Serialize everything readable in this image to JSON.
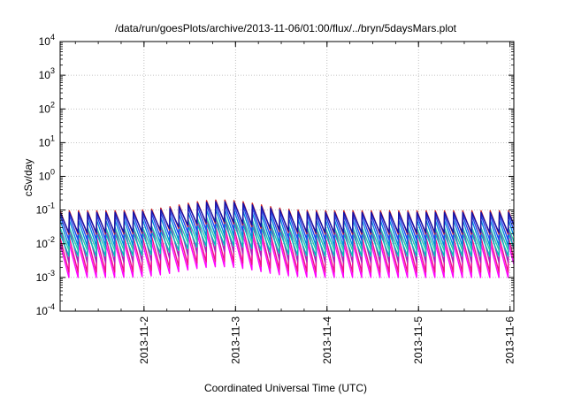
{
  "chart_data": {
    "type": "line",
    "title": "/data/run/goesPlots/archive/2013-11-06/01:00/flux/../bryn/5daysMars.plot",
    "xlabel": "Coordinated Universal Time (UTC)",
    "ylabel": "cSv/day",
    "yscale": "log",
    "ylim": [
      0.0001,
      10000
    ],
    "xlim": [
      "2013-11-01T02:00",
      "2013-11-06T01:00"
    ],
    "x_ticks": [
      "2013-11-2",
      "2013-11-3",
      "2013-11-4",
      "2013-11-5",
      "2013-11-6"
    ],
    "y_ticks": [
      {
        "base": "10",
        "exp": "-4"
      },
      {
        "base": "10",
        "exp": "-3"
      },
      {
        "base": "10",
        "exp": "-2"
      },
      {
        "base": "10",
        "exp": "-1"
      },
      {
        "base": "10",
        "exp": "0"
      },
      {
        "base": "10",
        "exp": "1"
      },
      {
        "base": "10",
        "exp": "2"
      },
      {
        "base": "10",
        "exp": "3"
      },
      {
        "base": "10",
        "exp": "4"
      }
    ],
    "grid": true,
    "legend": "none",
    "sawtooth_period_hours": 2.4,
    "sawtooth_start": "2013-11-01T02:00",
    "series": [
      {
        "color": "#ff00ff",
        "peak": 0.01,
        "trough": 0.0009
      },
      {
        "color": "#ee1188",
        "peak": 0.015,
        "trough": 0.0013
      },
      {
        "color": "#aa22bb",
        "peak": 0.03,
        "trough": 0.0025
      },
      {
        "color": "#00bbbb",
        "peak": 0.02,
        "trough": 0.004
      },
      {
        "color": "#22ccaa",
        "peak": 0.03,
        "trough": 0.006
      },
      {
        "color": "#0088dd",
        "peak": 0.05,
        "trough": 0.008
      },
      {
        "color": "#2244ee",
        "peak": 0.07,
        "trough": 0.012
      },
      {
        "color": "#cc2222",
        "peak": 0.095,
        "trough": 0.018
      },
      {
        "color": "#1111aa",
        "peak": 0.085,
        "trough": 0.02
      }
    ],
    "enhancement": {
      "center": "2013-11-02T20:00",
      "width_hours": 12,
      "factor": 2.1
    }
  }
}
